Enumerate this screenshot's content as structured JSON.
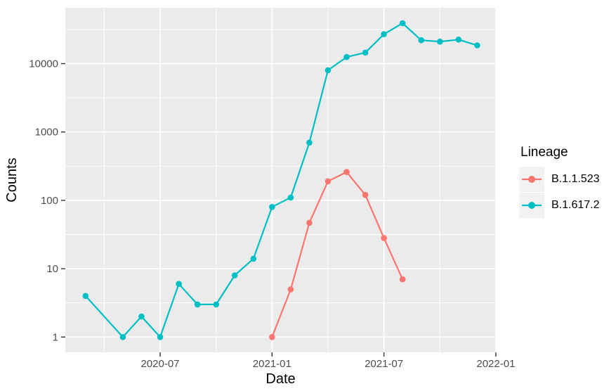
{
  "chart_data": {
    "type": "line",
    "title": "",
    "xlabel": "Date",
    "ylabel": "Counts",
    "y_scale": "log10",
    "y_ticks": [
      1,
      10,
      100,
      1000,
      10000
    ],
    "x_ticks": [
      "2020-07",
      "2021-01",
      "2021-07",
      "2022-01"
    ],
    "x_minor_ticks": [
      "2020-04",
      "2020-10",
      "2021-04",
      "2021-10"
    ],
    "grid": true,
    "legend": {
      "title": "Lineage",
      "position": "right"
    },
    "style": {
      "panel_bg": "#EBEBEB",
      "grid_color": "#FFFFFF",
      "tick_mark_color": "#333333",
      "tick_label_color": "#4D4D4D",
      "axis_title_color": "#000000",
      "legend_key_bg": "#F2F2F2"
    },
    "series": [
      {
        "name": "B.1.1.523",
        "color": "#F8766D",
        "points": [
          [
            "2021-01",
            1
          ],
          [
            "2021-02",
            5
          ],
          [
            "2021-03",
            47
          ],
          [
            "2021-04",
            190
          ],
          [
            "2021-05",
            260
          ],
          [
            "2021-06",
            120
          ],
          [
            "2021-07",
            28
          ],
          [
            "2021-08",
            7
          ]
        ]
      },
      {
        "name": "B.1.617.2",
        "color": "#00BFC4",
        "points": [
          [
            "2020-03",
            4
          ],
          [
            "2020-05",
            1
          ],
          [
            "2020-06",
            2
          ],
          [
            "2020-07",
            1
          ],
          [
            "2020-08",
            6
          ],
          [
            "2020-09",
            3
          ],
          [
            "2020-10",
            3
          ],
          [
            "2020-11",
            8
          ],
          [
            "2020-12",
            14
          ],
          [
            "2021-01",
            80
          ],
          [
            "2021-02",
            110
          ],
          [
            "2021-03",
            700
          ],
          [
            "2021-04",
            8000
          ],
          [
            "2021-05",
            12500
          ],
          [
            "2021-06",
            14500
          ],
          [
            "2021-07",
            27000
          ],
          [
            "2021-08",
            39000
          ],
          [
            "2021-09",
            22000
          ],
          [
            "2021-10",
            21000
          ],
          [
            "2021-11",
            22500
          ],
          [
            "2021-12",
            18500
          ]
        ]
      }
    ]
  }
}
